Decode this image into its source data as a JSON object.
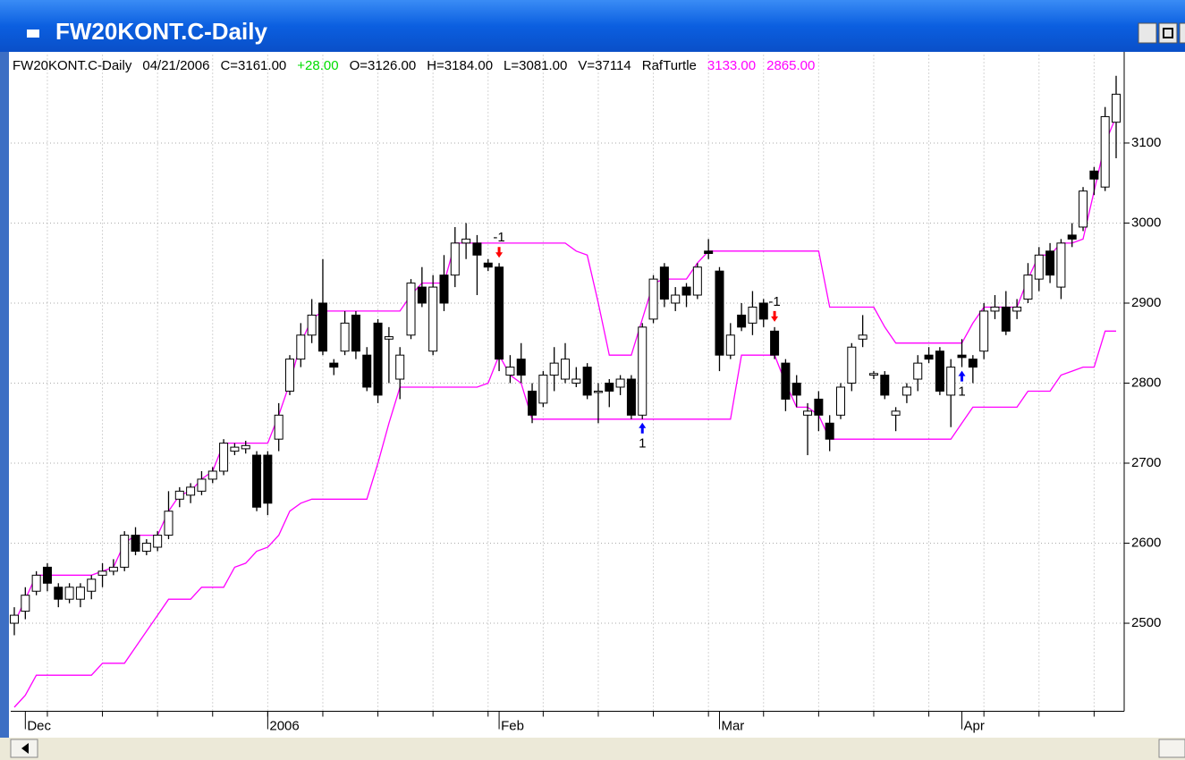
{
  "window_title": "FW20KONT.C-Daily",
  "chart_data": {
    "type": "candlestick",
    "info": [
      {
        "text": "FW20KONT.C-Daily",
        "color": "#000000"
      },
      {
        "text": "04/21/2006",
        "color": "#000000"
      },
      {
        "text": "C=3161.00",
        "color": "#000000"
      },
      {
        "text": "+28.00",
        "color": "#00dd00"
      },
      {
        "text": "O=3126.00",
        "color": "#000000"
      },
      {
        "text": "H=3184.00",
        "color": "#000000"
      },
      {
        "text": "L=3081.00",
        "color": "#000000"
      },
      {
        "text": "V=37114",
        "color": "#000000"
      },
      {
        "text": "RafTurtle",
        "color": "#000000"
      },
      {
        "text": "3133.00",
        "color": "#ff00ff"
      },
      {
        "text": "2865.00",
        "color": "#ff00ff"
      }
    ],
    "categories": [
      null,
      "Dec",
      null,
      null,
      null,
      null,
      null,
      null,
      null,
      null,
      null,
      null,
      null,
      null,
      null,
      null,
      null,
      null,
      null,
      null,
      null,
      null,
      null,
      "2006",
      null,
      null,
      null,
      null,
      null,
      null,
      null,
      null,
      null,
      null,
      null,
      null,
      null,
      null,
      null,
      null,
      null,
      null,
      null,
      null,
      "Feb",
      null,
      null,
      null,
      null,
      null,
      null,
      null,
      null,
      null,
      null,
      null,
      null,
      null,
      null,
      null,
      null,
      null,
      null,
      null,
      "Mar",
      null,
      null,
      null,
      null,
      null,
      null,
      null,
      null,
      null,
      null,
      null,
      null,
      null,
      null,
      null,
      null,
      null,
      null,
      null,
      null,
      null,
      "Apr",
      null,
      null,
      null,
      null,
      null,
      null,
      null,
      null,
      null,
      null,
      null,
      null,
      null,
      null
    ],
    "open": [
      2500,
      2515,
      2540,
      2570,
      2545,
      2530,
      2530,
      2540,
      2560,
      2565,
      2570,
      2610,
      2590,
      2595,
      2610,
      2655,
      2660,
      2665,
      2680,
      2690,
      2715,
      2718,
      2710,
      2710,
      2730,
      2790,
      2830,
      2860,
      2900,
      2825,
      2840,
      2885,
      2835,
      2875,
      2855,
      2805,
      2860,
      2920,
      2840,
      2935,
      2935,
      2975,
      2975,
      2950,
      2945,
      2810,
      2830,
      2790,
      2775,
      2810,
      2805,
      2800,
      2820,
      2790,
      2800,
      2795,
      2805,
      2760,
      2880,
      2945,
      2900,
      2920,
      2910,
      2965,
      2940,
      2835,
      2885,
      2875,
      2900,
      2865,
      2825,
      2800,
      2760,
      2780,
      2750,
      2760,
      2800,
      2855,
      2810,
      2810,
      2760,
      2785,
      2805,
      2835,
      2840,
      2785,
      2835,
      2830,
      2840,
      2890,
      2895,
      2890,
      2905,
      2930,
      2965,
      2920,
      2985,
      2995,
      3065,
      3045,
      3126
    ],
    "high": [
      2520,
      2545,
      2565,
      2575,
      2550,
      2550,
      2550,
      2560,
      2575,
      2580,
      2615,
      2620,
      2605,
      2615,
      2665,
      2670,
      2675,
      2690,
      2695,
      2730,
      2725,
      2728,
      2715,
      2715,
      2775,
      2835,
      2875,
      2905,
      2955,
      2830,
      2890,
      2890,
      2845,
      2880,
      2870,
      2845,
      2930,
      2945,
      2935,
      2960,
      2995,
      3000,
      2985,
      2955,
      2950,
      2835,
      2850,
      2800,
      2815,
      2845,
      2850,
      2820,
      2825,
      2800,
      2805,
      2810,
      2810,
      2875,
      2935,
      2950,
      2920,
      2925,
      2950,
      2980,
      2945,
      2875,
      2900,
      2915,
      2905,
      2870,
      2830,
      2810,
      2775,
      2790,
      2760,
      2800,
      2850,
      2885,
      2815,
      2815,
      2770,
      2800,
      2835,
      2845,
      2845,
      2830,
      2855,
      2835,
      2900,
      2910,
      2915,
      2905,
      2950,
      2970,
      2975,
      2980,
      3000,
      3045,
      3070,
      3145,
      3184
    ],
    "low": [
      2485,
      2505,
      2535,
      2540,
      2520,
      2525,
      2520,
      2530,
      2545,
      2560,
      2565,
      2585,
      2585,
      2590,
      2605,
      2645,
      2650,
      2660,
      2675,
      2685,
      2710,
      2712,
      2640,
      2635,
      2715,
      2785,
      2820,
      2850,
      2835,
      2810,
      2835,
      2830,
      2790,
      2775,
      2800,
      2780,
      2855,
      2895,
      2835,
      2890,
      2920,
      2955,
      2910,
      2940,
      2815,
      2800,
      2800,
      2750,
      2770,
      2790,
      2800,
      2795,
      2780,
      2750,
      2770,
      2785,
      2755,
      2755,
      2875,
      2895,
      2890,
      2895,
      2905,
      2955,
      2815,
      2830,
      2865,
      2860,
      2870,
      2830,
      2765,
      2770,
      2710,
      2740,
      2715,
      2755,
      2790,
      2845,
      2805,
      2780,
      2740,
      2775,
      2790,
      2825,
      2785,
      2745,
      2820,
      2800,
      2830,
      2880,
      2860,
      2880,
      2900,
      2915,
      2925,
      2905,
      2970,
      2990,
      3035,
      3040,
      3081
    ],
    "close": [
      2510,
      2535,
      2560,
      2550,
      2530,
      2545,
      2545,
      2555,
      2565,
      2570,
      2610,
      2590,
      2600,
      2610,
      2640,
      2665,
      2670,
      2680,
      2690,
      2725,
      2720,
      2722,
      2645,
      2650,
      2760,
      2830,
      2860,
      2885,
      2840,
      2820,
      2875,
      2840,
      2795,
      2785,
      2858,
      2835,
      2925,
      2900,
      2920,
      2900,
      2975,
      2980,
      2960,
      2945,
      2830,
      2820,
      2810,
      2760,
      2810,
      2825,
      2830,
      2805,
      2785,
      2790,
      2790,
      2805,
      2760,
      2870,
      2930,
      2905,
      2910,
      2910,
      2945,
      2962,
      2835,
      2860,
      2870,
      2895,
      2880,
      2835,
      2780,
      2785,
      2765,
      2760,
      2730,
      2795,
      2845,
      2860,
      2812,
      2785,
      2765,
      2795,
      2825,
      2830,
      2790,
      2820,
      2832,
      2820,
      2890,
      2895,
      2865,
      2895,
      2935,
      2960,
      2935,
      2975,
      2980,
      3040,
      3055,
      3133,
      3161
    ],
    "up_color": "#ffffff",
    "down_color": "#000000",
    "lines": [
      {
        "color": "#ff00ff",
        "values": [
          2500,
          2530,
          2560,
          2560,
          2560,
          2560,
          2560,
          2560,
          2565,
          2570,
          2600,
          2610,
          2610,
          2610,
          2640,
          2660,
          2665,
          2680,
          2690,
          2725,
          2725,
          2725,
          2725,
          2725,
          2760,
          2800,
          2850,
          2880,
          2890,
          2890,
          2890,
          2890,
          2890,
          2890,
          2890,
          2890,
          2910,
          2925,
          2925,
          2925,
          2975,
          2975,
          2975,
          2975,
          2975,
          2975,
          2975,
          2975,
          2975,
          2975,
          2975,
          2965,
          2960,
          2900,
          2835,
          2835,
          2835,
          2880,
          2925,
          2930,
          2930,
          2930,
          2950,
          2965,
          2965,
          2965,
          2965,
          2965,
          2965,
          2965,
          2965,
          2965,
          2965,
          2965,
          2895,
          2895,
          2895,
          2895,
          2895,
          2870,
          2850,
          2850,
          2850,
          2850,
          2850,
          2850,
          2850,
          2875,
          2895,
          2895,
          2895,
          2895,
          2930,
          2960,
          2960,
          2975,
          2975,
          2980,
          3040,
          3100,
          3133
        ]
      },
      {
        "color": "#ff00ff",
        "values": [
          2395,
          2410,
          2435,
          2435,
          2435,
          2435,
          2435,
          2435,
          2450,
          2450,
          2450,
          2470,
          2490,
          2510,
          2530,
          2530,
          2530,
          2545,
          2545,
          2545,
          2570,
          2575,
          2590,
          2595,
          2610,
          2640,
          2650,
          2655,
          2655,
          2655,
          2655,
          2655,
          2655,
          2700,
          2750,
          2795,
          2795,
          2795,
          2795,
          2795,
          2795,
          2795,
          2795,
          2800,
          2835,
          2810,
          2800,
          2755,
          2755,
          2755,
          2755,
          2755,
          2755,
          2755,
          2755,
          2755,
          2755,
          2755,
          2755,
          2755,
          2755,
          2755,
          2755,
          2755,
          2755,
          2755,
          2835,
          2835,
          2835,
          2835,
          2800,
          2770,
          2770,
          2760,
          2730,
          2730,
          2730,
          2730,
          2730,
          2730,
          2730,
          2730,
          2730,
          2730,
          2730,
          2730,
          2750,
          2770,
          2770,
          2770,
          2770,
          2770,
          2790,
          2790,
          2790,
          2810,
          2815,
          2820,
          2820,
          2865,
          2865
        ]
      }
    ],
    "signals": [
      {
        "index": 44,
        "label": "-1",
        "direction": "down",
        "color": "#ff0000"
      },
      {
        "index": 57,
        "label": "1",
        "direction": "up",
        "color": "#0000ff"
      },
      {
        "index": 69,
        "label": "-1",
        "direction": "down",
        "color": "#ff0000"
      },
      {
        "index": 86,
        "label": "1",
        "direction": "up",
        "color": "#0000ff"
      }
    ],
    "ylim": [
      2390,
      3210
    ],
    "yticks": [
      2500,
      2600,
      2700,
      2800,
      2900,
      3000,
      3100
    ],
    "grid": true
  }
}
